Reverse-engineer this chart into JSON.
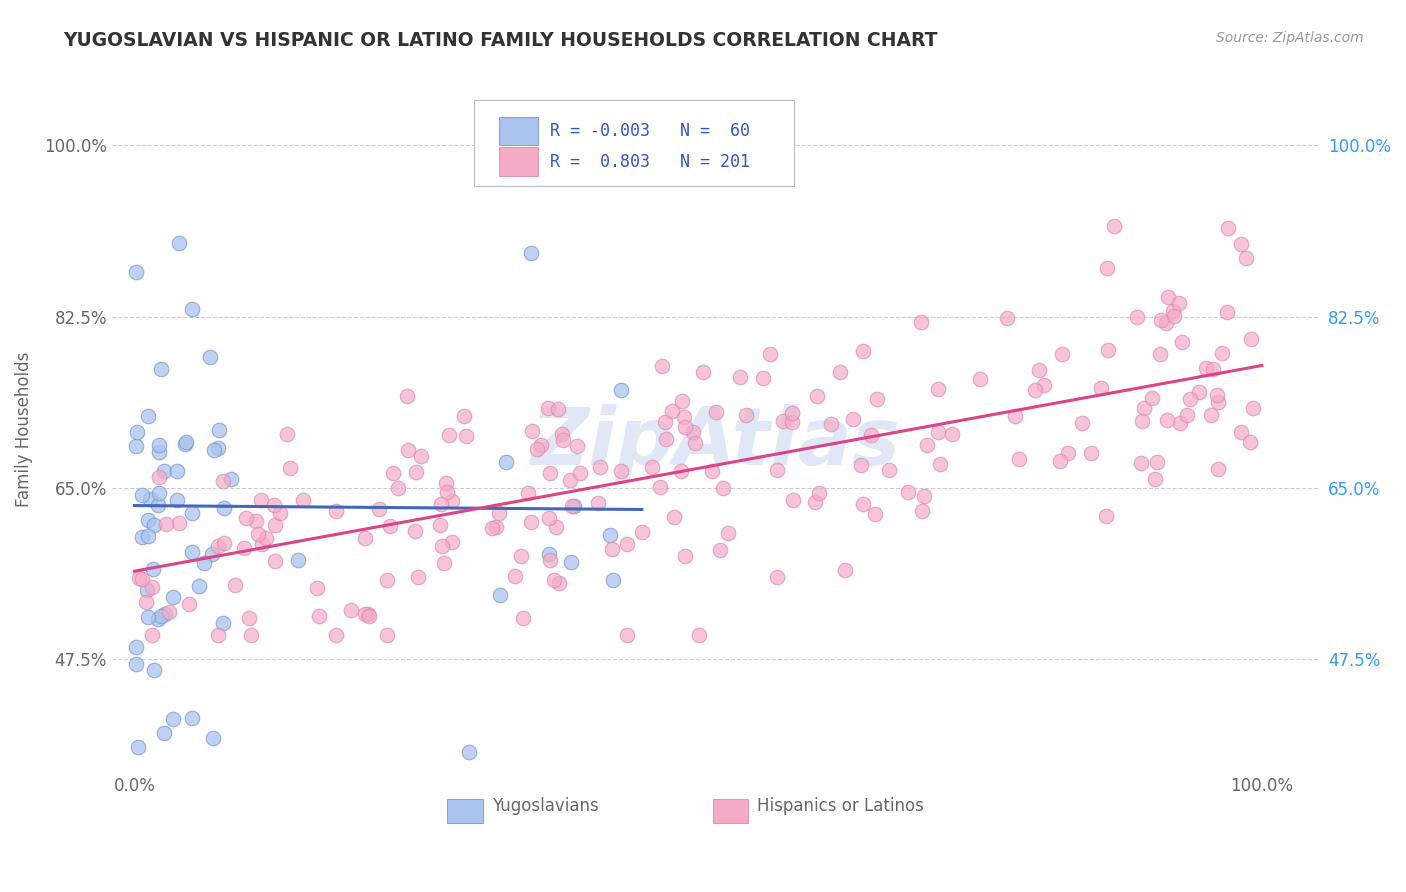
{
  "title": "YUGOSLAVIAN VS HISPANIC OR LATINO FAMILY HOUSEHOLDS CORRELATION CHART",
  "source": "Source: ZipAtlas.com",
  "ylabel": "Family Households",
  "series": [
    {
      "label": "Yugoslavians",
      "R": -0.003,
      "N": 60,
      "color_fill": "#aac4f0",
      "color_edge": "#7799cc",
      "trend_color": "#4466bb"
    },
    {
      "label": "Hispanics or Latinos",
      "R": 0.803,
      "N": 201,
      "color_fill": "#f5aac8",
      "color_edge": "#dd88aa",
      "trend_color": "#dd4488"
    }
  ],
  "legend_bottom": [
    "Yugoslavians",
    "Hispanics or Latinos"
  ],
  "yticks": [
    0.475,
    0.65,
    0.825,
    1.0
  ],
  "ytick_labels": [
    "47.5%",
    "65.0%",
    "82.5%",
    "100.0%"
  ],
  "xticks": [
    0.0,
    1.0
  ],
  "xtick_labels": [
    "0.0%",
    "100.0%"
  ],
  "xlim": [
    -0.02,
    1.05
  ],
  "ylim": [
    0.36,
    1.06
  ],
  "background_color": "#ffffff",
  "grid_color": "#cccccc",
  "title_color": "#333333",
  "axis_label_color": "#666666",
  "right_tick_color": "#3399ff",
  "legend_r_color": "#3355cc",
  "watermark": "ZipAtlas",
  "watermark_color": "#bbccee",
  "yugo_trend_y": [
    0.632,
    0.628
  ],
  "yugo_trend_x": [
    0.0,
    0.45
  ],
  "hisp_trend_y": [
    0.565,
    0.775
  ],
  "hisp_trend_x": [
    0.0,
    1.0
  ]
}
